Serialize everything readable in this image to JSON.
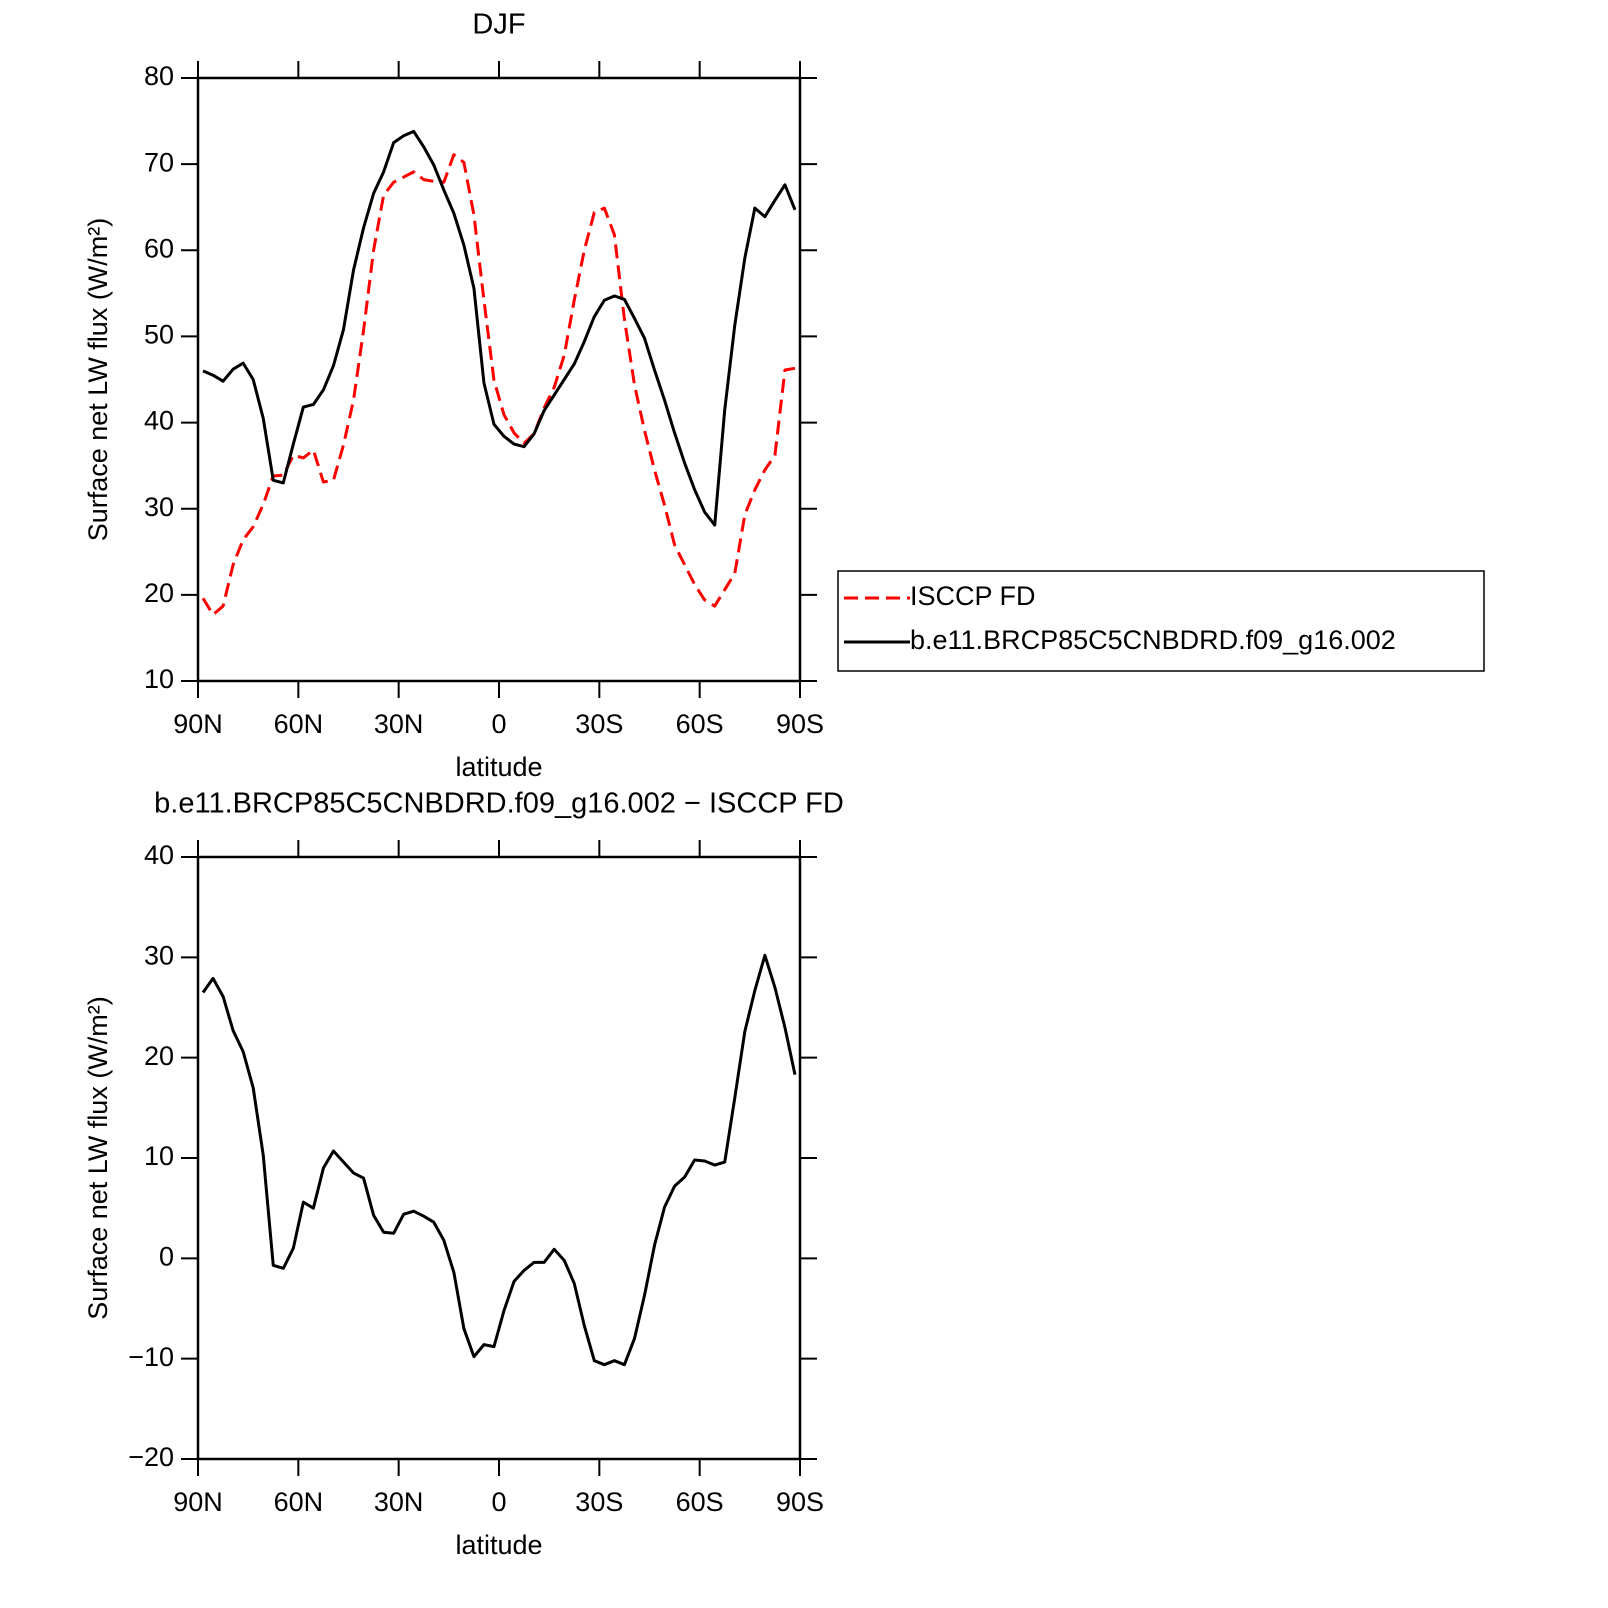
{
  "chart_data": [
    {
      "type": "line",
      "title": "DJF",
      "xlabel": "latitude",
      "ylabel": "Surface net LW flux (W/m²)",
      "x": [
        88.5,
        85.5,
        82.5,
        79.5,
        76.5,
        73.5,
        70.5,
        67.5,
        64.5,
        61.5,
        58.5,
        55.5,
        52.5,
        49.5,
        46.5,
        43.5,
        40.5,
        37.5,
        34.5,
        31.5,
        28.5,
        25.5,
        22.5,
        19.5,
        16.5,
        13.5,
        10.5,
        7.5,
        4.5,
        1.5,
        -1.5,
        -4.5,
        -7.5,
        -10.5,
        -13.5,
        -16.5,
        -19.5,
        -22.5,
        -25.5,
        -28.5,
        -31.5,
        -34.5,
        -37.5,
        -40.5,
        -43.5,
        -46.5,
        -49.5,
        -52.5,
        -55.5,
        -58.5,
        -61.5,
        -64.5,
        -67.5,
        -70.5,
        -73.5,
        -76.5,
        -79.5,
        -82.5,
        -85.5,
        -88.5
      ],
      "series": [
        {
          "name": "ISCCP FD",
          "color": "#ff0000",
          "linestyle": "dashed",
          "values": [
            19.6,
            17.7,
            18.7,
            23.5,
            26.4,
            27.9,
            30.5,
            33.8,
            33.9,
            36.2,
            35.9,
            36.8,
            33.1,
            33.3,
            37.4,
            42.6,
            50.7,
            60,
            66.4,
            67.9,
            68.5,
            69.1,
            68.2,
            68,
            67.9,
            71.1,
            70.2,
            64.1,
            54.2,
            44.9,
            40.9,
            38.8,
            37.6,
            38.7,
            41.7,
            44.1,
            47.8,
            54.2,
            60,
            64.4,
            64.9,
            61.8,
            52,
            44.4,
            39.1,
            34.5,
            30.4,
            25.8,
            23.5,
            21.2,
            19.4,
            18.7,
            20.6,
            22.5,
            29.3,
            32.2,
            34.5,
            36.2,
            46.1,
            46.3
          ]
        },
        {
          "name": "b.e11.BRCP85C5CNBDRD.f09_g16.002",
          "color": "#000000",
          "linestyle": "solid",
          "values": [
            46,
            45.5,
            44.8,
            46.2,
            46.9,
            45,
            40.5,
            33.3,
            33,
            37.5,
            41.8,
            42.1,
            43.8,
            46.6,
            50.8,
            57.7,
            62.6,
            66.6,
            69.1,
            72.5,
            73.3,
            73.8,
            72,
            69.9,
            67,
            64.3,
            60.6,
            55.6,
            44.6,
            39.8,
            38.4,
            37.5,
            37.2,
            38.7,
            41.4,
            43.2,
            45,
            46.8,
            49.4,
            52.3,
            54.2,
            54.7,
            54.3,
            52.1,
            49.8,
            46.1,
            42.6,
            38.8,
            35.3,
            32.2,
            29.6,
            28.1,
            41.5,
            51.3,
            59.1,
            64.9,
            63.9,
            65.8,
            67.6,
            64.7
          ]
        }
      ],
      "xlim": [
        90,
        -90
      ],
      "xticks": [
        {
          "value": 90,
          "label": "90N"
        },
        {
          "value": 60,
          "label": "60N"
        },
        {
          "value": 30,
          "label": "30N"
        },
        0,
        {
          "value": -30,
          "label": "30S"
        },
        {
          "value": -60,
          "label": "60S"
        },
        {
          "value": -90,
          "label": "90S"
        }
      ],
      "ylim": [
        10,
        80
      ],
      "yticks": [
        10,
        20,
        30,
        40,
        50,
        60,
        70,
        80
      ],
      "legend": "right"
    },
    {
      "type": "line",
      "title": "b.e11.BRCP85C5CNBDRD.f09_g16.002 − ISCCP FD",
      "xlabel": "latitude",
      "ylabel": "Surface net LW flux (W/m²)",
      "x": [
        88.5,
        85.5,
        82.5,
        79.5,
        76.5,
        73.5,
        70.5,
        67.5,
        64.5,
        61.5,
        58.5,
        55.5,
        52.5,
        49.5,
        46.5,
        43.5,
        40.5,
        37.5,
        34.5,
        31.5,
        28.5,
        25.5,
        22.5,
        19.5,
        16.5,
        13.5,
        10.5,
        7.5,
        4.5,
        1.5,
        -1.5,
        -4.5,
        -7.5,
        -10.5,
        -13.5,
        -16.5,
        -19.5,
        -22.5,
        -25.5,
        -28.5,
        -31.5,
        -34.5,
        -37.5,
        -40.5,
        -43.5,
        -46.5,
        -49.5,
        -52.5,
        -55.5,
        -58.5,
        -61.5,
        -64.5,
        -67.5,
        -70.5,
        -73.5,
        -76.5,
        -79.5,
        -82.5,
        -85.5,
        -88.5
      ],
      "series": [
        {
          "color": "#000000",
          "linestyle": "solid",
          "values": [
            26.5,
            27.9,
            26.1,
            22.7,
            20.6,
            17,
            10.3,
            -0.7,
            -1,
            1,
            5.6,
            5,
            9,
            10.7,
            9.6,
            8.5,
            8,
            4.3,
            2.6,
            2.5,
            4.4,
            4.7,
            4.2,
            3.6,
            1.8,
            -1.4,
            -7,
            -9.8,
            -8.6,
            -8.8,
            -5.2,
            -2.3,
            -1.2,
            -0.4,
            -0.4,
            0.9,
            -0.2,
            -2.5,
            -6.7,
            -10.2,
            -10.6,
            -10.2,
            -10.6,
            -8,
            -3.7,
            1.3,
            5.1,
            7.2,
            8.1,
            9.8,
            9.7,
            9.3,
            9.6,
            16,
            22.6,
            26.7,
            30.2,
            27,
            23,
            18.3
          ]
        }
      ],
      "xlim": [
        90,
        -90
      ],
      "xticks": [
        {
          "value": 90,
          "label": "90N"
        },
        {
          "value": 60,
          "label": "60N"
        },
        {
          "value": 30,
          "label": "30N"
        },
        0,
        {
          "value": -30,
          "label": "30S"
        },
        {
          "value": -60,
          "label": "60S"
        },
        {
          "value": -90,
          "label": "90S"
        }
      ],
      "ylim": [
        -20,
        40
      ],
      "yticks": [
        {
          "value": -20,
          "label": "−20"
        },
        {
          "value": -10,
          "label": "−10"
        },
        0,
        10,
        20,
        30,
        40
      ]
    }
  ]
}
